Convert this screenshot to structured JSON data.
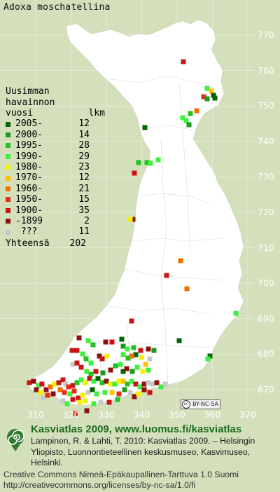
{
  "map": {
    "species_name": "Adoxa moschatellina",
    "y_axis_labels": [
      "770",
      "760",
      "750",
      "740",
      "730",
      "720",
      "710",
      "700",
      "690",
      "680",
      "670"
    ],
    "x_axis_labels": [
      "310",
      "320",
      "330",
      "340",
      "350",
      "360",
      "370"
    ],
    "colors": {
      "background": "#d4e0bc",
      "land": "#ffffff",
      "grid": "#ffffff"
    }
  },
  "legend": {
    "header_line1": "Uusimman",
    "header_line2": "havainnon",
    "header_line3": "vuosi",
    "header_count": "lkm",
    "classes": [
      {
        "label": "2005-",
        "count": "12",
        "color": "#006400"
      },
      {
        "label": "2000-",
        "count": "14",
        "color": "#1c9a1c"
      },
      {
        "label": "1995-",
        "count": "28",
        "color": "#22c222"
      },
      {
        "label": "1990-",
        "count": "29",
        "color": "#40f040"
      },
      {
        "label": "1980-",
        "count": "23",
        "color": "#f2f200"
      },
      {
        "label": "1970-",
        "count": "12",
        "color": "#ffc000"
      },
      {
        "label": "1960-",
        "count": "21",
        "color": "#f07000"
      },
      {
        "label": "1950-",
        "count": "15",
        "color": "#e03018"
      },
      {
        "label": "1900-",
        "count": "35",
        "color": "#c81414"
      },
      {
        "label": "-1899",
        "count": "2",
        "color": "#901010"
      },
      {
        "label": " ???",
        "count": "11",
        "color": "#c8c8c8"
      }
    ],
    "total_label": "Yhteensä",
    "total_count": "202"
  },
  "license_badge": "BY-NC-SA",
  "footer": {
    "title": "Kasviatlas 2009, www.luomus.fi/kasviatlas",
    "citation": "Lampinen, R. & Lahti, T. 2010: Kasviatlas 2009. – Helsingin Yliopisto, Luonnontieteellinen keskusmuseo, Kasvimuseo, Helsinki.",
    "license_line1": "Creative Commons Nimeä-Epäkaupallinen-Tarttuva 1.0 Suomi",
    "license_line2": "http://creativecommons.org/licenses/by-nc-sa/1.0/fi"
  }
}
